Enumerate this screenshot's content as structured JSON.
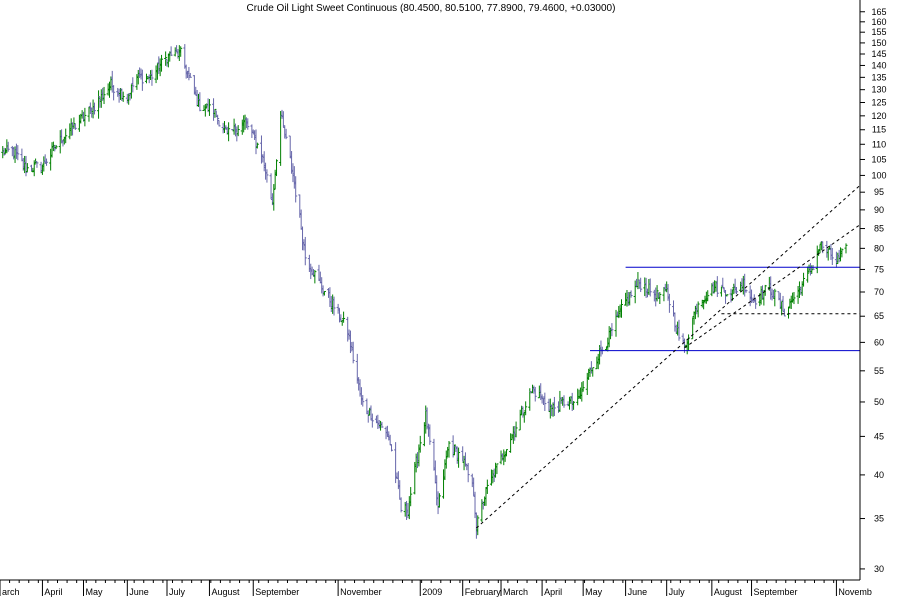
{
  "chart_data": {
    "type": "ohlc",
    "title": "Crude Oil Light Sweet Continuous (80.4500, 80.5100, 77.8900, 79.4600, +0.03000)",
    "y_scale": "log",
    "ylim": [
      29,
      170
    ],
    "y_ticks": [
      30,
      35,
      40,
      45,
      50,
      55,
      60,
      65,
      70,
      75,
      80,
      85,
      90,
      95,
      100,
      105,
      110,
      115,
      120,
      125,
      130,
      135,
      140,
      145,
      150,
      155,
      160,
      165
    ],
    "x_range": [
      "2008-03-01",
      "2009-11-09"
    ],
    "x_ticks": [
      {
        "label": "arch",
        "date": "2008-03-01"
      },
      {
        "label": "April",
        "date": "2008-04-01"
      },
      {
        "label": "May",
        "date": "2008-05-01"
      },
      {
        "label": "June",
        "date": "2008-06-02"
      },
      {
        "label": "July",
        "date": "2008-07-01"
      },
      {
        "label": "August",
        "date": "2008-08-01"
      },
      {
        "label": "September",
        "date": "2008-09-02"
      },
      {
        "label": "November",
        "date": "2008-11-03"
      },
      {
        "label": "2009",
        "date": "2009-01-02"
      },
      {
        "label": "February",
        "date": "2009-02-02"
      },
      {
        "label": "March",
        "date": "2009-03-02"
      },
      {
        "label": "April",
        "date": "2009-04-01"
      },
      {
        "label": "May",
        "date": "2009-05-01"
      },
      {
        "label": "June",
        "date": "2009-06-01"
      },
      {
        "label": "July",
        "date": "2009-07-01"
      },
      {
        "label": "August",
        "date": "2009-08-03"
      },
      {
        "label": "September",
        "date": "2009-09-01"
      },
      {
        "label": "Novemb",
        "date": "2009-11-02"
      }
    ],
    "close_anchors": [
      [
        "2008-03-01",
        107
      ],
      [
        "2008-03-10",
        108
      ],
      [
        "2008-03-20",
        102
      ],
      [
        "2008-04-01",
        103
      ],
      [
        "2008-04-15",
        112
      ],
      [
        "2008-04-28",
        118
      ],
      [
        "2008-05-08",
        123
      ],
      [
        "2008-05-21",
        132
      ],
      [
        "2008-06-02",
        127
      ],
      [
        "2008-06-09",
        135
      ],
      [
        "2008-06-19",
        135
      ],
      [
        "2008-07-03",
        145
      ],
      [
        "2008-07-11",
        145
      ],
      [
        "2008-07-15",
        138
      ],
      [
        "2008-07-24",
        124
      ],
      [
        "2008-08-04",
        122
      ],
      [
        "2008-08-14",
        113
      ],
      [
        "2008-08-27",
        118
      ],
      [
        "2008-09-08",
        107
      ],
      [
        "2008-09-16",
        92
      ],
      [
        "2008-09-22",
        120
      ],
      [
        "2008-10-01",
        100
      ],
      [
        "2008-10-10",
        78
      ],
      [
        "2008-10-20",
        72
      ],
      [
        "2008-10-31",
        67
      ],
      [
        "2008-11-10",
        62
      ],
      [
        "2008-11-20",
        50
      ],
      [
        "2008-12-01",
        47
      ],
      [
        "2008-12-10",
        45
      ],
      [
        "2008-12-19",
        36
      ],
      [
        "2008-12-24",
        36
      ],
      [
        "2009-01-06",
        48
      ],
      [
        "2009-01-15",
        36
      ],
      [
        "2009-01-23",
        44
      ],
      [
        "2009-02-02",
        42
      ],
      [
        "2009-02-10",
        38
      ],
      [
        "2009-02-12",
        34
      ],
      [
        "2009-02-19",
        38
      ],
      [
        "2009-03-02",
        42
      ],
      [
        "2009-03-12",
        46
      ],
      [
        "2009-03-25",
        52
      ],
      [
        "2009-04-08",
        49
      ],
      [
        "2009-04-17",
        50
      ],
      [
        "2009-04-27",
        50
      ],
      [
        "2009-05-08",
        56
      ],
      [
        "2009-05-20",
        61
      ],
      [
        "2009-06-01",
        68
      ],
      [
        "2009-06-11",
        72
      ],
      [
        "2009-06-25",
        69
      ],
      [
        "2009-07-01",
        70
      ],
      [
        "2009-07-10",
        61
      ],
      [
        "2009-07-14",
        59
      ],
      [
        "2009-07-24",
        68
      ],
      [
        "2009-08-05",
        71
      ],
      [
        "2009-08-18",
        70
      ],
      [
        "2009-08-26",
        72
      ],
      [
        "2009-09-02",
        68
      ],
      [
        "2009-09-14",
        71
      ],
      [
        "2009-09-25",
        66
      ],
      [
        "2009-10-05",
        70
      ],
      [
        "2009-10-15",
        75
      ],
      [
        "2009-10-21",
        81
      ],
      [
        "2009-11-02",
        77
      ],
      [
        "2009-11-09",
        79.46
      ]
    ],
    "annotations": [
      {
        "kind": "horizontal",
        "style": "solid",
        "color": "#0000cc",
        "y": 75.5,
        "x_start": "2009-06-01",
        "x_end": "2009-11-09"
      },
      {
        "kind": "horizontal",
        "style": "solid",
        "color": "#0000cc",
        "y": 58.5,
        "x_start": "2009-05-06",
        "x_end": "2009-11-09"
      },
      {
        "kind": "horizontal",
        "style": "dashed",
        "color": "#000000",
        "y": 65.5,
        "x_start": "2009-08-10",
        "x_end": "2009-11-09"
      },
      {
        "kind": "trendline",
        "style": "dashed",
        "color": "#000000",
        "x1": "2009-02-12",
        "y1": 34,
        "x2": "2009-11-09",
        "y2": 97
      },
      {
        "kind": "trendline",
        "style": "dashed",
        "color": "#000000",
        "x1": "2009-07-14",
        "y1": 59,
        "x2": "2009-11-09",
        "y2": 86
      }
    ],
    "colors": {
      "up": "#008000",
      "down": "#6666aa",
      "line_blue": "#0000cc",
      "axis": "#000000"
    }
  }
}
